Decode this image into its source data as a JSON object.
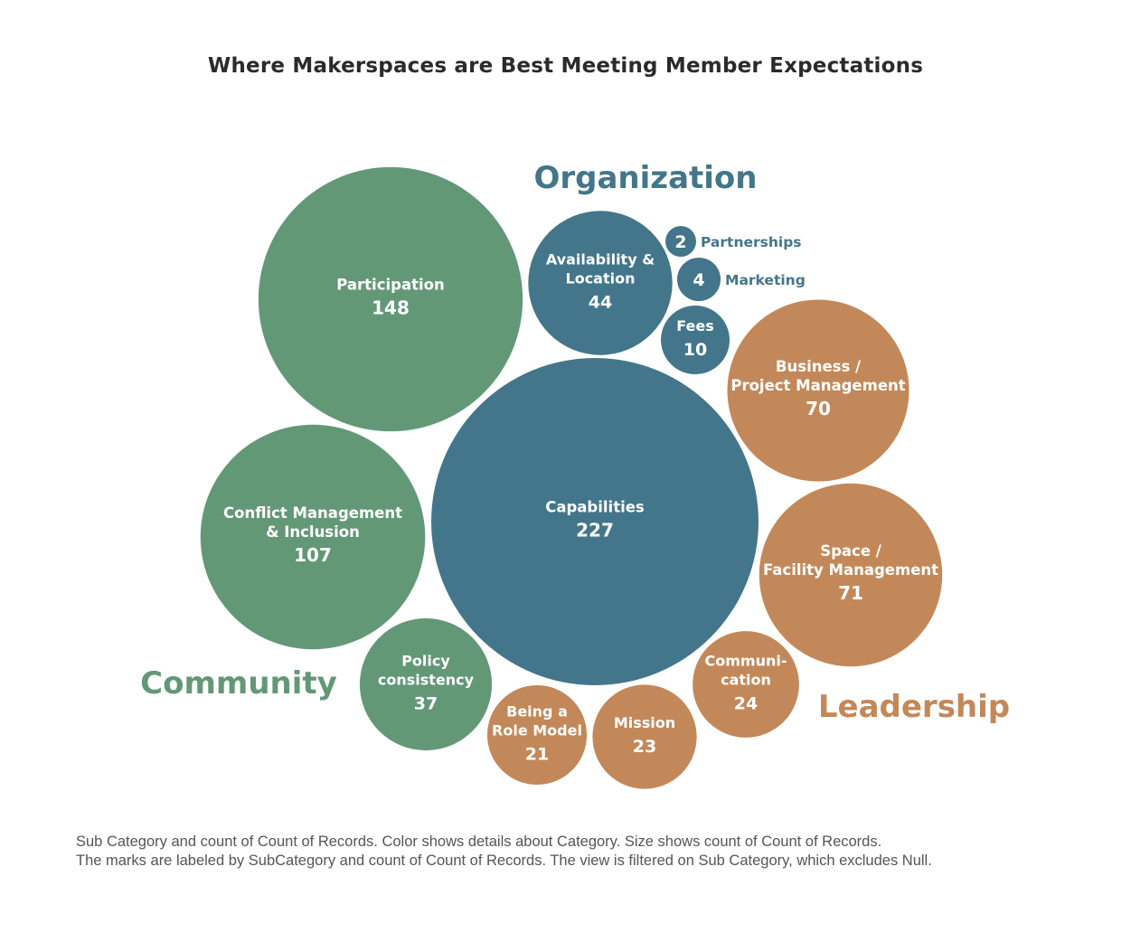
{
  "title": "Where Makerspaces are Best Meeting Member Expectations",
  "caption": {
    "line1": "Sub Category and count of Count of Records.  Color shows details about Category.  Size shows count of Count of Records.",
    "line2": "The marks are labeled by SubCategory and count of Count of Records. The view is filtered on Sub Category, which excludes Null."
  },
  "colors": {
    "Organization": "#43768a",
    "Community": "#639877",
    "Leadership": "#c38859"
  },
  "chart_data": {
    "type": "bubble",
    "title": "Where Makerspaces are Best Meeting Member Expectations",
    "categories": [
      "Organization",
      "Community",
      "Leadership"
    ],
    "bubbles": [
      {
        "label": [
          "Capabilities"
        ],
        "value": 227,
        "category": "Organization"
      },
      {
        "label": [
          "Availability &",
          "Location"
        ],
        "value": 44,
        "category": "Organization"
      },
      {
        "label": [
          "Fees"
        ],
        "value": 10,
        "category": "Organization"
      },
      {
        "label": [
          "Marketing"
        ],
        "value": 4,
        "category": "Organization"
      },
      {
        "label": [
          "Partnerships"
        ],
        "value": 2,
        "category": "Organization"
      },
      {
        "label": [
          "Participation"
        ],
        "value": 148,
        "category": "Community"
      },
      {
        "label": [
          "Conflict Management",
          "& Inclusion"
        ],
        "value": 107,
        "category": "Community"
      },
      {
        "label": [
          "Policy",
          "consistency"
        ],
        "value": 37,
        "category": "Community"
      },
      {
        "label": [
          "Space /",
          "Facility Management"
        ],
        "value": 71,
        "category": "Leadership"
      },
      {
        "label": [
          "Business /",
          "Project Management"
        ],
        "value": 70,
        "category": "Leadership"
      },
      {
        "label": [
          "Communi-",
          "cation"
        ],
        "value": 24,
        "category": "Leadership"
      },
      {
        "label": [
          "Mission"
        ],
        "value": 23,
        "category": "Leadership"
      },
      {
        "label": [
          "Being a",
          "Role Model"
        ],
        "value": 21,
        "category": "Leadership"
      }
    ]
  }
}
